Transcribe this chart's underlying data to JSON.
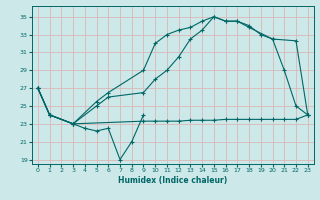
{
  "xlabel": "Humidex (Indice chaleur)",
  "bg_color": "#cce8e8",
  "grid_color": "#dbb8b8",
  "line_color": "#006666",
  "xlim": [
    -0.5,
    23.5
  ],
  "ylim": [
    18.5,
    36.2
  ],
  "yticks": [
    19,
    21,
    23,
    25,
    27,
    29,
    31,
    33,
    35
  ],
  "xticks": [
    0,
    1,
    2,
    3,
    4,
    5,
    6,
    7,
    8,
    9,
    10,
    11,
    12,
    13,
    14,
    15,
    16,
    17,
    18,
    19,
    20,
    21,
    22,
    23
  ],
  "line_zigzag_x": [
    0,
    1,
    3,
    4,
    5,
    6,
    7,
    8,
    9
  ],
  "line_zigzag_y": [
    27.0,
    24.0,
    23.0,
    22.5,
    22.2,
    22.5,
    19.0,
    21.0,
    24.0
  ],
  "line_flat_x": [
    0,
    1,
    3,
    9,
    10,
    11,
    12,
    13,
    14,
    15,
    16,
    17,
    18,
    19,
    20,
    21,
    22,
    23
  ],
  "line_flat_y": [
    27.0,
    24.0,
    23.0,
    23.3,
    23.3,
    23.3,
    23.3,
    23.4,
    23.4,
    23.4,
    23.5,
    23.5,
    23.5,
    23.5,
    23.5,
    23.5,
    23.5,
    24.0
  ],
  "line_mid_x": [
    0,
    1,
    3,
    5,
    6,
    9,
    10,
    11,
    12,
    13,
    14,
    15,
    16,
    17,
    18,
    20,
    22,
    23
  ],
  "line_mid_y": [
    27.0,
    24.0,
    23.0,
    25.5,
    26.5,
    29.0,
    32.0,
    33.0,
    33.5,
    33.8,
    34.5,
    35.0,
    34.5,
    34.5,
    33.8,
    32.5,
    32.3,
    24.0
  ],
  "line_top_x": [
    0,
    1,
    3,
    5,
    6,
    9,
    10,
    11,
    12,
    13,
    14,
    15,
    16,
    17,
    18,
    19,
    20,
    21,
    22,
    23
  ],
  "line_top_y": [
    27.0,
    24.0,
    23.0,
    25.0,
    26.0,
    26.5,
    28.0,
    29.0,
    30.5,
    32.5,
    33.5,
    35.0,
    34.5,
    34.5,
    34.0,
    33.0,
    32.5,
    29.0,
    25.0,
    24.0
  ]
}
